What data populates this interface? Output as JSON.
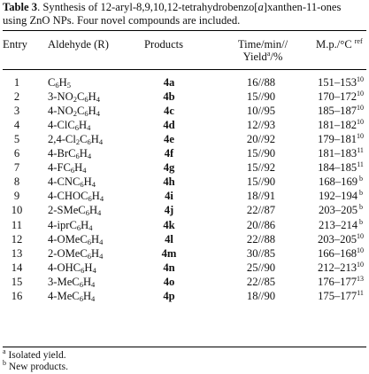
{
  "caption": {
    "label": "Table 3",
    "text_before": ". Synthesis of 12-aryl-8,9,10,12-tetrahydrobenzo[",
    "italic": "a",
    "text_after": "]xanthen-11-ones using ZnO NPs. Four novel compounds are included."
  },
  "headers": {
    "entry": "Entry",
    "aldehyde": "Aldehyde (R)",
    "products": "Products",
    "time_line1": "Time/min//",
    "time_line2_pre": "Yield",
    "time_line2_sup": "a",
    "time_line2_post": "/%",
    "mp_pre": "M.p./°C",
    "mp_sup": "ref"
  },
  "rows": [
    {
      "entry": "1",
      "aldehyde": [
        [
          "C",
          ""
        ],
        [
          "6",
          "sub"
        ],
        [
          "H",
          ""
        ],
        [
          "5",
          "sub"
        ]
      ],
      "product": "4a",
      "time_yield": "16//88",
      "mp": "151–153",
      "ref": "10"
    },
    {
      "entry": "2",
      "aldehyde": [
        [
          "3-NO",
          ""
        ],
        [
          "2",
          "sub"
        ],
        [
          "C",
          ""
        ],
        [
          "6",
          "sub"
        ],
        [
          "H",
          ""
        ],
        [
          "4",
          "sub"
        ]
      ],
      "product": "4b",
      "time_yield": "15//90",
      "mp": "170–172",
      "ref": "10"
    },
    {
      "entry": "3",
      "aldehyde": [
        [
          "4-NO",
          ""
        ],
        [
          "2",
          "sub"
        ],
        [
          "C",
          ""
        ],
        [
          "6",
          "sub"
        ],
        [
          "H",
          ""
        ],
        [
          "4",
          "sub"
        ]
      ],
      "product": "4c",
      "time_yield": "10//95",
      "mp": "185–187",
      "ref": "10"
    },
    {
      "entry": "4",
      "aldehyde": [
        [
          "4-ClC",
          ""
        ],
        [
          "6",
          "sub"
        ],
        [
          "H",
          ""
        ],
        [
          "4",
          "sub"
        ]
      ],
      "product": "4d",
      "time_yield": "12//93",
      "mp": "181–182",
      "ref": "10"
    },
    {
      "entry": "5",
      "aldehyde": [
        [
          "2,4-Cl",
          ""
        ],
        [
          "2",
          "sub"
        ],
        [
          "C",
          ""
        ],
        [
          "6",
          "sub"
        ],
        [
          "H",
          ""
        ],
        [
          "4",
          "sub"
        ]
      ],
      "product": "4e",
      "time_yield": "20//92",
      "mp": "179–181",
      "ref": "10"
    },
    {
      "entry": "6",
      "aldehyde": [
        [
          "4-BrC",
          ""
        ],
        [
          "6",
          "sub"
        ],
        [
          "H",
          ""
        ],
        [
          "4",
          "sub"
        ]
      ],
      "product": "4f",
      "time_yield": "15//90",
      "mp": "181–183",
      "ref": "11"
    },
    {
      "entry": "7",
      "aldehyde": [
        [
          "4-FC",
          ""
        ],
        [
          "6",
          "sub"
        ],
        [
          "H",
          ""
        ],
        [
          "4",
          "sub"
        ]
      ],
      "product": "4g",
      "time_yield": "15//92",
      "mp": "184–185",
      "ref": "11"
    },
    {
      "entry": "8",
      "aldehyde": [
        [
          "4-CNC",
          ""
        ],
        [
          "6",
          "sub"
        ],
        [
          "H",
          ""
        ],
        [
          "4",
          "sub"
        ]
      ],
      "product": "4h",
      "time_yield": "15//90",
      "mp": "168–169",
      "ref": "b"
    },
    {
      "entry": "9",
      "aldehyde": [
        [
          "4-CHOC",
          ""
        ],
        [
          "6",
          "sub"
        ],
        [
          "H",
          ""
        ],
        [
          "4",
          "sub"
        ]
      ],
      "product": "4i",
      "time_yield": "18//91",
      "mp": "192–194",
      "ref": "b"
    },
    {
      "entry": "10",
      "aldehyde": [
        [
          "2-SMeC",
          ""
        ],
        [
          "6",
          "sub"
        ],
        [
          "H",
          ""
        ],
        [
          "4",
          "sub"
        ]
      ],
      "product": "4j",
      "time_yield": "22//87",
      "mp": "203–205",
      "ref": "b"
    },
    {
      "entry": "11",
      "aldehyde": [
        [
          "4-iprC",
          ""
        ],
        [
          "6",
          "sub"
        ],
        [
          "H",
          ""
        ],
        [
          "4",
          "sub"
        ]
      ],
      "product": "4k",
      "time_yield": "20//86",
      "mp": "213–214",
      "ref": "b"
    },
    {
      "entry": "12",
      "aldehyde": [
        [
          "4-OMeC",
          ""
        ],
        [
          "6",
          "sub"
        ],
        [
          "H",
          ""
        ],
        [
          "4",
          "sub"
        ]
      ],
      "product": "4l",
      "time_yield": "22//88",
      "mp": "203–205",
      "ref": "10"
    },
    {
      "entry": "13",
      "aldehyde": [
        [
          "2-OMeC",
          ""
        ],
        [
          "6",
          "sub"
        ],
        [
          "H",
          ""
        ],
        [
          "4",
          "sub"
        ]
      ],
      "product": "4m",
      "time_yield": "30//85",
      "mp": "166–168",
      "ref": "10"
    },
    {
      "entry": "14",
      "aldehyde": [
        [
          "4-OHC",
          ""
        ],
        [
          "6",
          "sub"
        ],
        [
          "H",
          ""
        ],
        [
          "4",
          "sub"
        ]
      ],
      "product": "4n",
      "time_yield": "25//90",
      "mp": "212–213",
      "ref": "10"
    },
    {
      "entry": "15",
      "aldehyde": [
        [
          "3-MeC",
          ""
        ],
        [
          "6",
          "sub"
        ],
        [
          "H",
          ""
        ],
        [
          "4",
          "sub"
        ]
      ],
      "product": "4o",
      "time_yield": "22//85",
      "mp": "176–177",
      "ref": "13"
    },
    {
      "entry": "16",
      "aldehyde": [
        [
          "4-MeC",
          ""
        ],
        [
          "6",
          "sub"
        ],
        [
          "H",
          ""
        ],
        [
          "4",
          "sub"
        ]
      ],
      "product": "4p",
      "time_yield": "18//90",
      "mp": "175–177",
      "ref": "11"
    }
  ],
  "footnotes": [
    {
      "mark": "a",
      "text": " Isolated yield."
    },
    {
      "mark": "b",
      "text": " New products."
    }
  ]
}
